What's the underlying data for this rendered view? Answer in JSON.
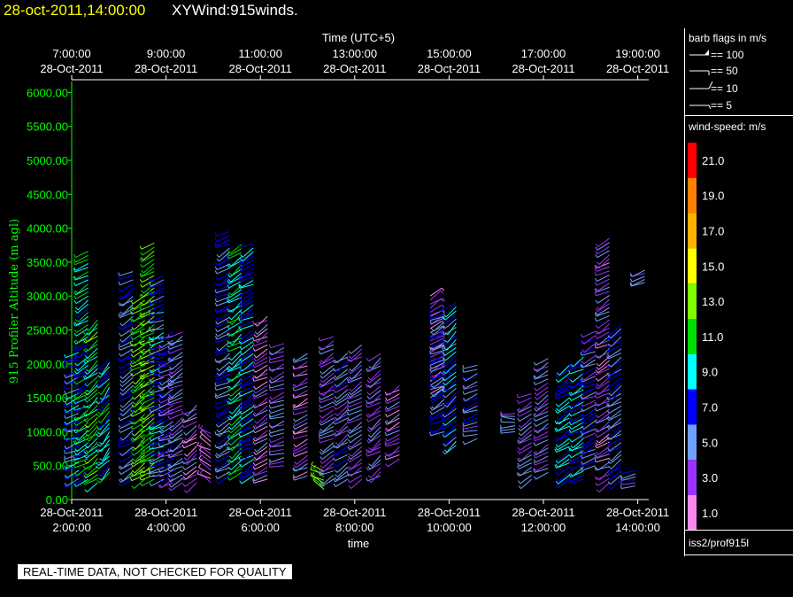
{
  "header": {
    "time_label": "28-oct-2011,14:00:00",
    "product_label": "XYWind:915winds."
  },
  "chart_data": {
    "type": "wind-barb time-height",
    "y_axis": {
      "label": "915 Profiler Altitude (m agl)",
      "range": [
        0,
        6200
      ],
      "ticks": [
        0,
        500,
        1000,
        1500,
        2000,
        2500,
        3000,
        3500,
        4000,
        4500,
        5000,
        5500,
        6000
      ],
      "tick_labels": [
        "0.00",
        "500.00",
        "1000.00",
        "1500.00",
        "2000.00",
        "2500.00",
        "3000.00",
        "3500.00",
        "4000.00",
        "4500.00",
        "5000.00",
        "5500.00",
        "6000.00"
      ],
      "color": "#00ff00"
    },
    "x_bottom": {
      "label": "time",
      "ticks": [
        {
          "hour": 2,
          "date": "28-Oct-2011",
          "time": "2:00:00"
        },
        {
          "hour": 4,
          "date": "28-Oct-2011",
          "time": "4:00:00"
        },
        {
          "hour": 6,
          "date": "28-Oct-2011",
          "time": "6:00:00"
        },
        {
          "hour": 8,
          "date": "28-Oct-2011",
          "time": "8:00:00"
        },
        {
          "hour": 10,
          "date": "28-Oct-2011",
          "time": "10:00:00"
        },
        {
          "hour": 12,
          "date": "28-Oct-2011",
          "time": "12:00:00"
        },
        {
          "hour": 14,
          "date": "28-Oct-2011",
          "time": "14:00:00"
        }
      ],
      "range": [
        2.0,
        14.3
      ]
    },
    "x_top": {
      "label": "Time (UTC+5)",
      "ticks": [
        {
          "time": "7:00:00",
          "date": "28-Oct-2011"
        },
        {
          "time": "9:00:00",
          "date": "28-Oct-2011"
        },
        {
          "time": "11:00:00",
          "date": "28-Oct-2011"
        },
        {
          "time": "13:00:00",
          "date": "28-Oct-2011"
        },
        {
          "time": "15:00:00",
          "date": "28-Oct-2011"
        },
        {
          "time": "17:00:00",
          "date": "28-Oct-2011"
        },
        {
          "time": "19:00:00",
          "date": "28-Oct-2011"
        }
      ]
    },
    "columns": [
      {
        "hour": 2.15,
        "bottom": 250,
        "top": 2200,
        "dir": 250,
        "speed": 7
      },
      {
        "hour": 2.35,
        "bottom": 300,
        "top": 3700,
        "dir": 240,
        "speed": 9
      },
      {
        "hour": 2.55,
        "bottom": 250,
        "top": 2700,
        "dir": 230,
        "speed": 11
      },
      {
        "hour": 2.8,
        "bottom": 400,
        "top": 2100,
        "dir": 220,
        "speed": 9
      },
      {
        "hour": 3.3,
        "bottom": 300,
        "top": 3400,
        "dir": 240,
        "speed": 6
      },
      {
        "hour": 3.55,
        "bottom": 300,
        "top": 3000,
        "dir": 235,
        "speed": 12
      },
      {
        "hour": 3.75,
        "bottom": 300,
        "top": 3800,
        "dir": 240,
        "speed": 12
      },
      {
        "hour": 3.95,
        "bottom": 300,
        "top": 3300,
        "dir": 250,
        "speed": 7
      },
      {
        "hour": 4.15,
        "bottom": 250,
        "top": 2500,
        "dir": 245,
        "speed": 5
      },
      {
        "hour": 4.35,
        "bottom": 250,
        "top": 2500,
        "dir": 240,
        "speed": 4
      },
      {
        "hour": 4.65,
        "bottom": 250,
        "top": 1400,
        "dir": 235,
        "speed": 3
      },
      {
        "hour": 4.95,
        "bottom": 250,
        "top": 1000,
        "dir": 300,
        "speed": 2
      },
      {
        "hour": 5.35,
        "bottom": 350,
        "top": 4000,
        "dir": 240,
        "speed": 6
      },
      {
        "hour": 5.6,
        "bottom": 400,
        "top": 3800,
        "dir": 235,
        "speed": 10
      },
      {
        "hour": 5.85,
        "bottom": 350,
        "top": 3800,
        "dir": 240,
        "speed": 8
      },
      {
        "hour": 6.15,
        "bottom": 300,
        "top": 2700,
        "dir": 240,
        "speed": 3
      },
      {
        "hour": 6.5,
        "bottom": 500,
        "top": 2300,
        "dir": 250,
        "speed": 4
      },
      {
        "hour": 7.0,
        "bottom": 350,
        "top": 2200,
        "dir": 245,
        "speed": 3
      },
      {
        "hour": 7.35,
        "bottom": 150,
        "top": 450,
        "dir": 300,
        "speed": 12
      },
      {
        "hour": 7.55,
        "bottom": 300,
        "top": 2400,
        "dir": 240,
        "speed": 4
      },
      {
        "hour": 7.85,
        "bottom": 300,
        "top": 2200,
        "dir": 235,
        "speed": 5
      },
      {
        "hour": 8.15,
        "bottom": 300,
        "top": 2300,
        "dir": 240,
        "speed": 4
      },
      {
        "hour": 8.55,
        "bottom": 350,
        "top": 2200,
        "dir": 235,
        "speed": 4
      },
      {
        "hour": 8.95,
        "bottom": 600,
        "top": 1700,
        "dir": 240,
        "speed": 3
      },
      {
        "hour": 9.6,
        "bottom": 1500,
        "top": 3000,
        "dir": 60,
        "speed": 3
      },
      {
        "hour": 9.9,
        "bottom": 1000,
        "top": 2800,
        "dir": 240,
        "speed": 6
      },
      {
        "hour": 10.15,
        "bottom": 800,
        "top": 2900,
        "dir": 230,
        "speed": 7
      },
      {
        "hour": 10.6,
        "bottom": 900,
        "top": 2000,
        "dir": 250,
        "speed": 5
      },
      {
        "hour": 11.4,
        "bottom": 1000,
        "top": 1300,
        "dir": 270,
        "speed": 5
      },
      {
        "hour": 11.75,
        "bottom": 300,
        "top": 1600,
        "dir": 240,
        "speed": 4
      },
      {
        "hour": 12.1,
        "bottom": 400,
        "top": 2100,
        "dir": 240,
        "speed": 4
      },
      {
        "hour": 12.55,
        "bottom": 300,
        "top": 2000,
        "dir": 235,
        "speed": 8
      },
      {
        "hour": 12.85,
        "bottom": 300,
        "top": 2100,
        "dir": 240,
        "speed": 8
      },
      {
        "hour": 13.1,
        "bottom": 500,
        "top": 2500,
        "dir": 245,
        "speed": 5
      },
      {
        "hour": 13.4,
        "bottom": 250,
        "top": 3900,
        "dir": 240,
        "speed": 3
      },
      {
        "hour": 13.65,
        "bottom": 300,
        "top": 2600,
        "dir": 235,
        "speed": 6
      },
      {
        "hour": 13.95,
        "bottom": 200,
        "top": 450,
        "dir": 260,
        "speed": 5
      },
      {
        "hour": 14.15,
        "bottom": 3200,
        "top": 3400,
        "dir": 250,
        "speed": 4
      }
    ],
    "colorbar": {
      "title": "wind-speed: m/s",
      "labels": [
        "21.0",
        "19.0",
        "17.0",
        "15.0",
        "13.0",
        "11.0",
        "9.0",
        "7.0",
        "5.0",
        "3.0",
        "1.0"
      ],
      "colors": [
        "#ff0000",
        "#ff7f00",
        "#ffb000",
        "#ffff00",
        "#7fff00",
        "#00e000",
        "#00ffff",
        "#0000ff",
        "#6fa0ff",
        "#9933ff",
        "#ff88ee"
      ]
    }
  },
  "legend": {
    "barb_title": "barb flags in m/s",
    "barb_entries": [
      "== 100",
      "== 50",
      "== 10",
      "== 5"
    ]
  },
  "footer": {
    "source": "iss2/prof915l",
    "quality_note": "REAL-TIME DATA, NOT CHECKED FOR QUALITY"
  }
}
